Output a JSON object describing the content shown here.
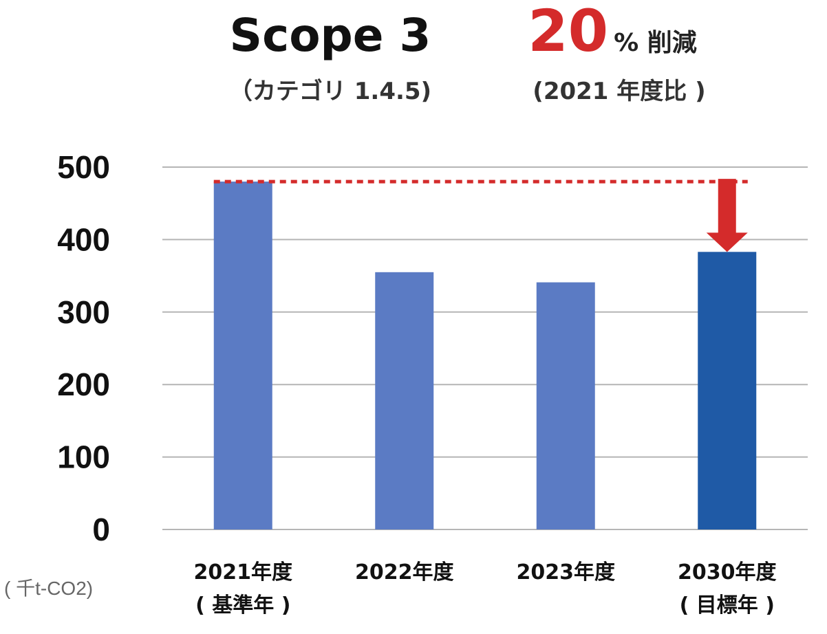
{
  "header": {
    "title": "Scope 3",
    "subtitle": "（カテゴリ 1.4.5)",
    "reduction_value": "20",
    "reduction_label": "% 削減",
    "reduction_note": "(2021 年度比 )"
  },
  "unit_label": "( 千t-CO2)",
  "chart_data": {
    "type": "bar",
    "categories": [
      [
        "2021年度",
        "( 基準年 )"
      ],
      [
        "2022年度"
      ],
      [
        "2023年度"
      ],
      [
        "2030年度",
        "( 目標年 )"
      ]
    ],
    "values": [
      480,
      355,
      341,
      383
    ],
    "bar_colors": [
      "#5b7bc4",
      "#5b7bc4",
      "#5b7bc4",
      "#1f5aa6"
    ],
    "ylim": [
      0,
      500
    ],
    "yticks": [
      "0",
      "100",
      "200",
      "300",
      "400",
      "500"
    ],
    "grid": true,
    "reference_line": {
      "value": 480,
      "color": "#d42b2b",
      "style": "dotted"
    },
    "arrow_color": "#d42b2b",
    "gridline_color": "#b5b5b5"
  }
}
